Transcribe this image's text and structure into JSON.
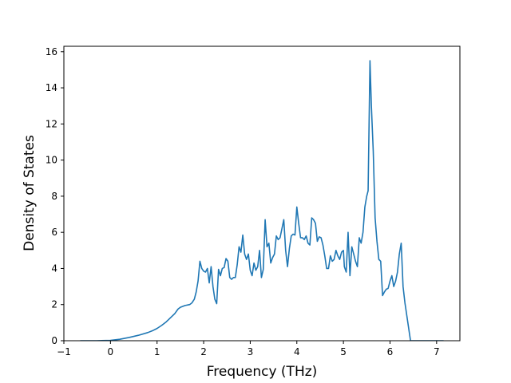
{
  "chart_data": {
    "type": "line",
    "title": "",
    "xlabel": "Frequency (THz)",
    "ylabel": "Density of States",
    "xlim": [
      -1.0,
      7.5
    ],
    "ylim": [
      0,
      16.3
    ],
    "xticks": [
      -1,
      0,
      1,
      2,
      3,
      4,
      5,
      6,
      7
    ],
    "xtick_labels": [
      "−1",
      "0",
      "1",
      "2",
      "3",
      "4",
      "5",
      "6",
      "7"
    ],
    "yticks": [
      0,
      2,
      4,
      6,
      8,
      10,
      12,
      14,
      16
    ],
    "ytick_labels": [
      "0",
      "2",
      "4",
      "6",
      "8",
      "10",
      "12",
      "14",
      "16"
    ],
    "grid": false,
    "legend": false,
    "colors": {
      "line": "#1f77b4",
      "axes": "#000000",
      "background": "#ffffff"
    },
    "series": [
      {
        "x": [
          -0.65,
          -0.3,
          0.0,
          0.2,
          0.4,
          0.6,
          0.8,
          0.9,
          1.0,
          1.1,
          1.2,
          1.3,
          1.38,
          1.45,
          1.5,
          1.6,
          1.7,
          1.75,
          1.8,
          1.84,
          1.88,
          1.92,
          1.96,
          2.0,
          2.04,
          2.08,
          2.12,
          2.16,
          2.2,
          2.24,
          2.28,
          2.32,
          2.36,
          2.4,
          2.44,
          2.48,
          2.52,
          2.56,
          2.6,
          2.64,
          2.68,
          2.72,
          2.76,
          2.8,
          2.84,
          2.88,
          2.92,
          2.96,
          3.0,
          3.04,
          3.08,
          3.12,
          3.16,
          3.2,
          3.24,
          3.28,
          3.32,
          3.36,
          3.4,
          3.44,
          3.48,
          3.52,
          3.56,
          3.6,
          3.64,
          3.68,
          3.72,
          3.76,
          3.8,
          3.84,
          3.88,
          3.92,
          3.96,
          4.0,
          4.04,
          4.08,
          4.12,
          4.16,
          4.2,
          4.24,
          4.28,
          4.32,
          4.36,
          4.4,
          4.44,
          4.48,
          4.52,
          4.56,
          4.6,
          4.64,
          4.68,
          4.72,
          4.76,
          4.8,
          4.84,
          4.88,
          4.92,
          4.96,
          5.0,
          5.02,
          5.06,
          5.1,
          5.14,
          5.18,
          5.22,
          5.26,
          5.3,
          5.34,
          5.38,
          5.42,
          5.46,
          5.5,
          5.53,
          5.57,
          5.6,
          5.64,
          5.68,
          5.72,
          5.76,
          5.8,
          5.84,
          5.88,
          5.92,
          5.96,
          6.0,
          6.04,
          6.08,
          6.12,
          6.16,
          6.2,
          6.24,
          6.28,
          6.32,
          6.36,
          6.4,
          6.44,
          6.48,
          6.52,
          7.0,
          7.15
        ],
        "y": [
          0.0,
          0.0,
          0.02,
          0.08,
          0.18,
          0.3,
          0.45,
          0.55,
          0.68,
          0.85,
          1.05,
          1.3,
          1.5,
          1.75,
          1.85,
          1.95,
          2.0,
          2.1,
          2.3,
          2.7,
          3.3,
          4.4,
          4.0,
          3.85,
          3.8,
          4.0,
          3.2,
          4.1,
          3.0,
          2.3,
          2.05,
          3.95,
          3.6,
          4.0,
          4.05,
          4.55,
          4.4,
          3.5,
          3.4,
          3.5,
          3.5,
          4.2,
          5.2,
          4.9,
          5.85,
          4.8,
          4.5,
          4.8,
          3.9,
          3.6,
          4.3,
          3.9,
          4.1,
          5.0,
          3.5,
          3.95,
          6.7,
          5.2,
          5.4,
          4.3,
          4.6,
          4.8,
          5.8,
          5.6,
          5.7,
          6.2,
          6.7,
          5.0,
          4.1,
          5.1,
          5.8,
          5.9,
          5.85,
          7.4,
          6.5,
          5.7,
          5.7,
          5.6,
          5.8,
          5.4,
          5.3,
          6.8,
          6.7,
          6.5,
          5.5,
          5.75,
          5.7,
          5.3,
          4.7,
          4.0,
          4.0,
          4.7,
          4.4,
          4.5,
          5.0,
          4.7,
          4.5,
          4.9,
          5.0,
          4.1,
          3.8,
          6.0,
          3.6,
          5.2,
          4.8,
          4.4,
          4.1,
          5.7,
          5.4,
          6.0,
          7.4,
          8.0,
          8.3,
          15.5,
          13.0,
          10.5,
          6.8,
          5.5,
          4.5,
          4.4,
          2.5,
          2.7,
          2.85,
          2.9,
          3.3,
          3.6,
          3.0,
          3.3,
          3.8,
          4.8,
          5.4,
          3.0,
          2.1,
          1.4,
          0.7,
          0.0,
          0.0,
          0.0,
          0.0,
          0.0
        ]
      }
    ]
  }
}
